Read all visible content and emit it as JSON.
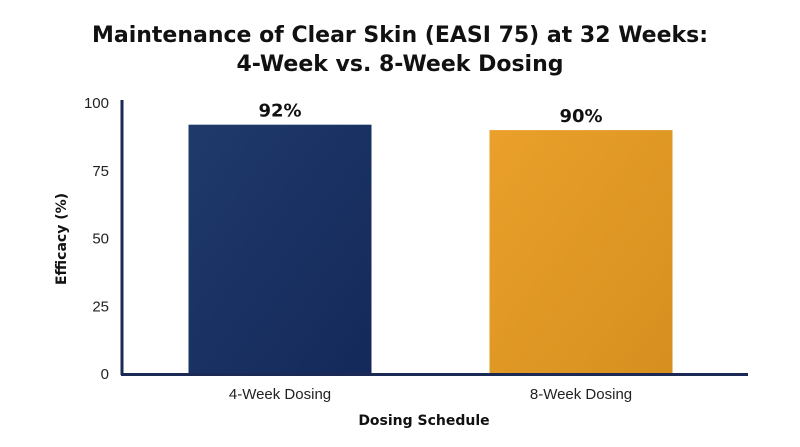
{
  "chart_data": {
    "type": "bar",
    "title_lines": [
      "Maintenance of Clear Skin (EASI 75) at 32 Weeks:",
      "4-Week vs. 8-Week Dosing"
    ],
    "categories": [
      "4-Week Dosing",
      "8-Week Dosing"
    ],
    "values": [
      92,
      90
    ],
    "data_labels": [
      "92%",
      "90%"
    ],
    "bar_colors": [
      "#1f3a6b",
      "#eaa02a"
    ],
    "bar_colors_dark": [
      "#14295a",
      "#d68f1f"
    ],
    "axis_color": "#1a2a55",
    "xlabel": "Dosing Schedule",
    "ylabel": "Efficacy (%)",
    "ylim": [
      0,
      100
    ],
    "yticks": [
      0,
      25,
      50,
      75,
      100
    ],
    "ytick_labels": [
      "0",
      "25",
      "50",
      "75",
      "100"
    ],
    "grid": false,
    "legend": "none"
  }
}
